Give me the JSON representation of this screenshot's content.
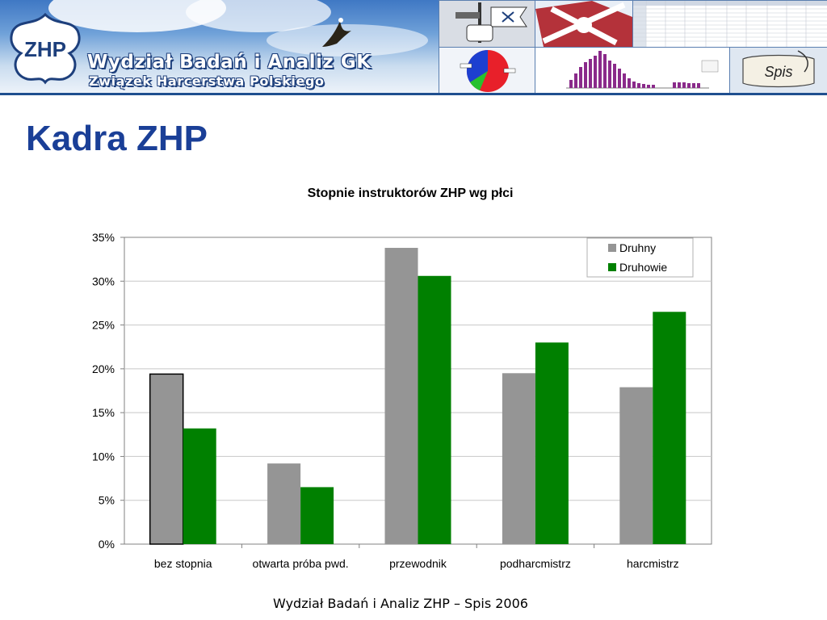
{
  "banner": {
    "title": "Wydział Badań i Analiz GK",
    "subtitle": "Związek Harcerstwa Polskiego",
    "logo_text": "ZHP",
    "thumb_scroll_text": "Spis"
  },
  "slide": {
    "title": "Kadra ZHP",
    "footer": "Wydział Badań i Analiz ZHP – Spis 2006"
  },
  "colors": {
    "druhny": "#959595",
    "druhowie": "#008000",
    "title_blue": "#1a3f97"
  },
  "chart_data": {
    "type": "bar",
    "title": "Stopnie instruktorów ZHP wg płci",
    "categories": [
      "bez stopnia",
      "otwarta próba pwd.",
      "przewodnik",
      "podharcmistrz",
      "harcmistrz"
    ],
    "series": [
      {
        "name": "Druhny",
        "values": [
          0.194,
          0.092,
          0.338,
          0.195,
          0.179
        ]
      },
      {
        "name": "Druhowie",
        "values": [
          0.132,
          0.065,
          0.306,
          0.23,
          0.265
        ]
      }
    ],
    "ylim": [
      0,
      0.35
    ],
    "yticks": [
      0,
      0.05,
      0.1,
      0.15,
      0.2,
      0.25,
      0.3,
      0.35
    ],
    "yticks_labels": [
      "0%",
      "5%",
      "10%",
      "15%",
      "20%",
      "25%",
      "30%",
      "35%"
    ],
    "xlabel": "",
    "ylabel": "",
    "grid": true,
    "legend": "top-right"
  }
}
